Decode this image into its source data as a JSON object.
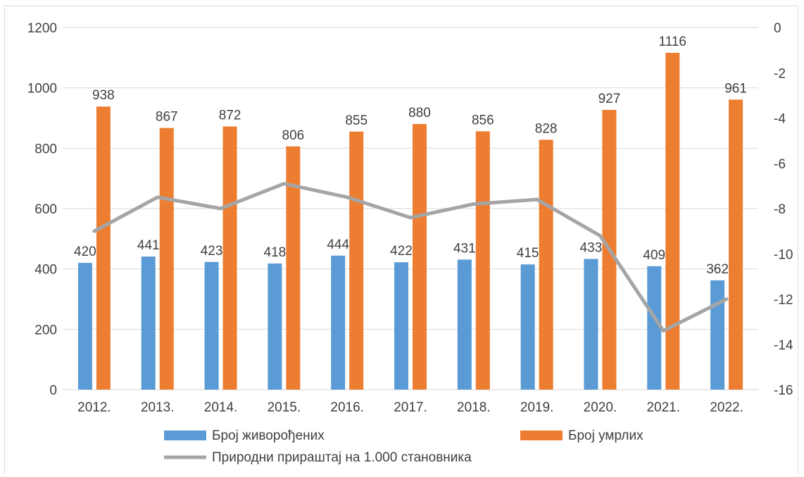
{
  "chart_data": {
    "type": "bar",
    "categories": [
      "2012.",
      "2013.",
      "2014.",
      "2015.",
      "2016.",
      "2017.",
      "2018.",
      "2019.",
      "2020.",
      "2021.",
      "2022."
    ],
    "series": [
      {
        "name": "Број живорођених",
        "type": "bar",
        "axis": "left",
        "color": "#5b9bd5",
        "values": [
          420,
          441,
          423,
          418,
          444,
          422,
          431,
          415,
          433,
          409,
          362
        ],
        "show_labels": true
      },
      {
        "name": "Број умрлих",
        "type": "bar",
        "axis": "left",
        "color": "#ed7d31",
        "values": [
          938,
          867,
          872,
          806,
          855,
          880,
          856,
          828,
          927,
          1116,
          961
        ],
        "show_labels": true
      },
      {
        "name": "Природни прираштај на 1.000 становника",
        "type": "line",
        "axis": "right",
        "color": "#a5a5a5",
        "values": [
          -9.0,
          -7.5,
          -8.0,
          -6.9,
          -7.5,
          -8.4,
          -7.8,
          -7.6,
          -9.2,
          -13.4,
          -12.0
        ],
        "show_labels": false
      }
    ],
    "y_left": {
      "ylim": [
        0,
        1200
      ],
      "ticks": [
        0,
        200,
        400,
        600,
        800,
        1000,
        1200
      ]
    },
    "y_right": {
      "ylim": [
        -16,
        0
      ],
      "ticks": [
        0,
        -2,
        -4,
        -6,
        -8,
        -10,
        -12,
        -14,
        -16
      ]
    },
    "gridlines": true,
    "legend_position": "bottom"
  }
}
